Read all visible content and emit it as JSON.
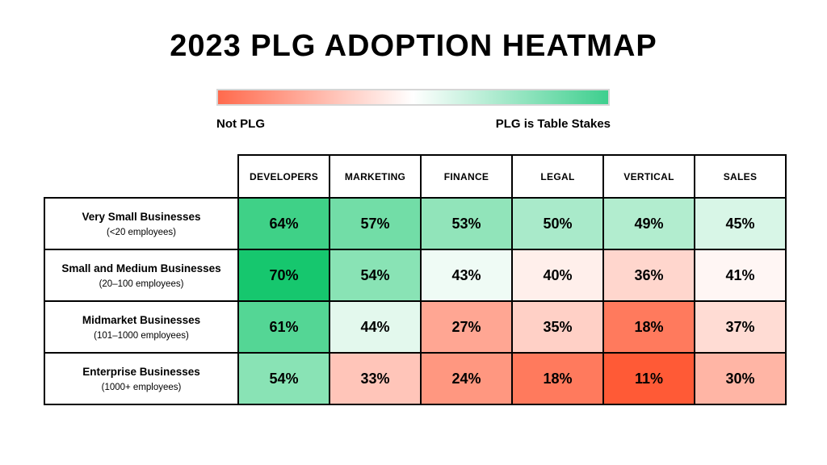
{
  "title": "2023 PLG ADOPTION HEATMAP",
  "legend": {
    "low_label": "Not PLG",
    "high_label": "PLG is Table Stakes",
    "low_color": "#ff6a4d",
    "high_color": "#3ecf8e"
  },
  "chart_data": {
    "type": "heatmap",
    "title": "2023 PLG ADOPTION HEATMAP",
    "columns": [
      "DEVELOPERS",
      "MARKETING",
      "FINANCE",
      "LEGAL",
      "VERTICAL",
      "SALES"
    ],
    "rows": [
      {
        "name": "Very Small Businesses",
        "sub": "(<20 employees)",
        "values": [
          64,
          57,
          53,
          50,
          49,
          45
        ]
      },
      {
        "name": "Small and Medium Businesses",
        "sub": "(20–100 employees)",
        "values": [
          70,
          54,
          43,
          40,
          36,
          41
        ]
      },
      {
        "name": "Midmarket Businesses",
        "sub": "(101–1000 employees)",
        "values": [
          61,
          44,
          27,
          35,
          18,
          37
        ]
      },
      {
        "name": "Enterprise Businesses",
        "sub": "(1000+ employees)",
        "values": [
          54,
          33,
          24,
          18,
          11,
          30
        ]
      }
    ],
    "value_suffix": "%",
    "color_scale": {
      "low": "#ff5a36",
      "mid": "#ffffff",
      "high": "#16c76e",
      "low_value": 11,
      "mid_value": 42,
      "high_value": 70
    }
  }
}
